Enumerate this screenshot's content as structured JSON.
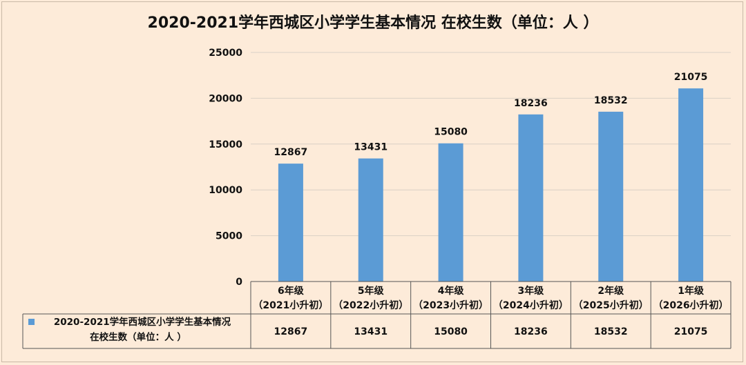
{
  "chart_data": {
    "type": "bar",
    "title": "2020-2021学年西城区小学学生基本情况 在校生数（单位：人 ）",
    "categories": [
      [
        "6年级",
        "（2021小升初）"
      ],
      [
        "5年级",
        "（2022小升初）"
      ],
      [
        "4年级",
        "（2023小升初）"
      ],
      [
        "3年级",
        "（2024小升初）"
      ],
      [
        "2年级",
        "（2025小升初）"
      ],
      [
        "1年级",
        "（2026小升初）"
      ]
    ],
    "series": [
      {
        "name": [
          "2020-2021学年西城区小学学生基本情况",
          "在校生数（单位：人 ）"
        ],
        "values": [
          12867,
          13431,
          15080,
          18236,
          18532,
          21075
        ],
        "color": "#5b9bd5"
      }
    ],
    "ylim": [
      0,
      25000
    ],
    "yticks": [
      "0",
      "5000",
      "10000",
      "15000",
      "20000",
      "25000"
    ],
    "grid": true,
    "legend": "data-table",
    "data_table": true
  }
}
